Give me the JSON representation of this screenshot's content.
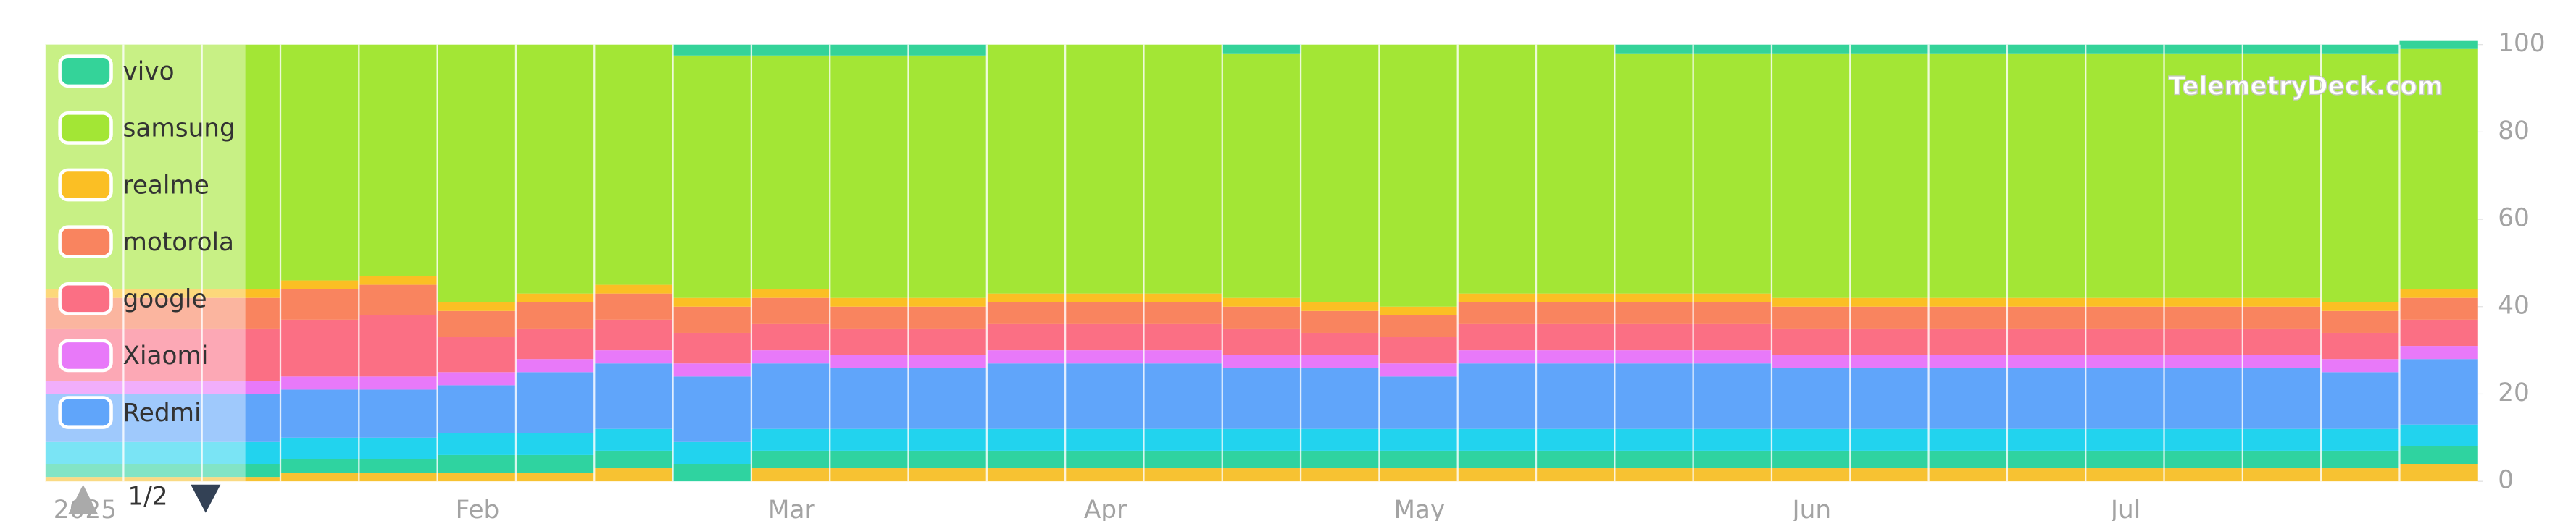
{
  "chart_data": {
    "type": "stacked_bar",
    "watermark": "TelemetryDeck.com",
    "legend_page": "1/2",
    "categories": [
      "2025",
      null,
      null,
      null,
      null,
      "Feb",
      null,
      null,
      null,
      "Mar",
      null,
      null,
      null,
      "Apr",
      null,
      null,
      null,
      "May",
      null,
      null,
      null,
      null,
      "Jun",
      null,
      null,
      null,
      "Jul",
      null,
      null,
      null,
      null
    ],
    "ylim": [
      0,
      100
    ],
    "yticks": [
      0,
      20,
      40,
      60,
      80,
      100
    ],
    "series": [
      {
        "color": "#f7c232",
        "values": [
          1,
          1,
          1,
          2,
          2,
          2,
          2,
          3,
          0,
          3,
          3,
          3,
          3,
          3,
          3,
          3,
          3,
          3,
          3,
          3,
          3,
          3,
          3,
          3,
          3,
          3,
          3,
          3,
          3,
          3,
          4
        ]
      },
      {
        "color": "#2fd3a0",
        "values": [
          3,
          3,
          3,
          3,
          3,
          4,
          4,
          4,
          4,
          4,
          4,
          4,
          4,
          4,
          4,
          4,
          4,
          4,
          4,
          4,
          4,
          4,
          4,
          4,
          4,
          4,
          4,
          4,
          4,
          4,
          4
        ]
      },
      {
        "color": "#22d3ee",
        "values": [
          5,
          5,
          5,
          5,
          5,
          5,
          5,
          5,
          5,
          5,
          5,
          5,
          5,
          5,
          5,
          5,
          5,
          5,
          5,
          5,
          5,
          5,
          5,
          5,
          5,
          5,
          5,
          5,
          5,
          5,
          5
        ]
      },
      {
        "name": "Redmi",
        "color": "#60a5fa",
        "values": [
          11,
          11,
          11,
          11,
          11,
          11,
          14,
          15,
          15,
          15,
          14,
          14,
          15,
          15,
          15,
          14,
          14,
          12,
          15,
          15,
          15,
          15,
          14,
          14,
          14,
          14,
          14,
          14,
          14,
          13,
          15
        ]
      },
      {
        "name": "Xiaomi",
        "color": "#e879f9",
        "values": [
          3,
          3,
          3,
          3,
          3,
          3,
          3,
          3,
          3,
          3,
          3,
          3,
          3,
          3,
          3,
          3,
          3,
          3,
          3,
          3,
          3,
          3,
          3,
          3,
          3,
          3,
          3,
          3,
          3,
          3,
          3
        ]
      },
      {
        "name": "google",
        "color": "#fb6f84",
        "values": [
          12,
          12,
          12,
          13,
          14,
          8,
          7,
          7,
          7,
          6,
          6,
          6,
          6,
          6,
          6,
          6,
          5,
          6,
          6,
          6,
          6,
          6,
          6,
          6,
          6,
          6,
          6,
          6,
          6,
          6,
          6
        ]
      },
      {
        "name": "motorola",
        "color": "#f9845f",
        "values": [
          7,
          7,
          7,
          7,
          7,
          6,
          6,
          6,
          6,
          6,
          5,
          5,
          5,
          5,
          5,
          5,
          5,
          5,
          5,
          5,
          5,
          5,
          5,
          5,
          5,
          5,
          5,
          5,
          5,
          5,
          5
        ]
      },
      {
        "name": "realme",
        "color": "#fbbf24",
        "values": [
          2,
          2,
          2,
          2,
          2,
          2,
          2,
          2,
          2,
          2,
          2,
          2,
          2,
          2,
          2,
          2,
          2,
          2,
          2,
          2,
          2,
          2,
          2,
          2,
          2,
          2,
          2,
          2,
          2,
          2,
          2
        ]
      },
      {
        "name": "samsung",
        "color": "#a3e635",
        "values": [
          56,
          56,
          56,
          54,
          53,
          59,
          57,
          55,
          55.5,
          53.5,
          55.5,
          55.5,
          57,
          57,
          57,
          56,
          59,
          60,
          57,
          57,
          55,
          55,
          56,
          56,
          56,
          56,
          56,
          56,
          56,
          57,
          55
        ]
      },
      {
        "name": "vivo",
        "color": "#34d399",
        "values": [
          0,
          0,
          0,
          0,
          0,
          0,
          0,
          0,
          2.5,
          2.5,
          2.5,
          2.5,
          0,
          0,
          0,
          2,
          0,
          0,
          0,
          0,
          2,
          2,
          2,
          2,
          2,
          2,
          2,
          2,
          2,
          2,
          2
        ]
      }
    ]
  }
}
